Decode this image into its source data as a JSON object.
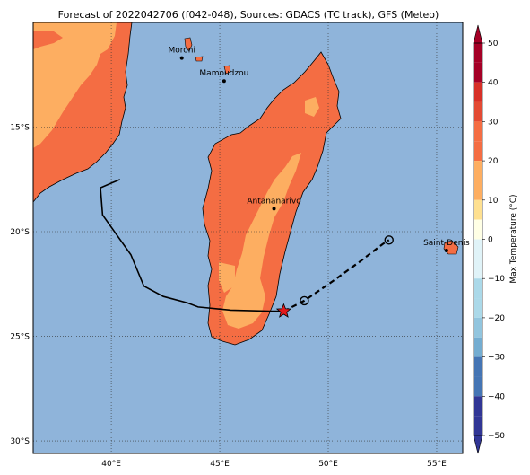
{
  "title": "Forecast of 2022042706 (f042-048), Sources: GDACS (TC track), GFS (Meteo)",
  "colors": {
    "sea": "#8fb4da",
    "land_hot": "#f46d43",
    "land_warm": "#fdae61",
    "coast": "#000000",
    "track": "#000000",
    "marker_now": "#e31a1c"
  },
  "axes": {
    "lon_range": [
      36.4,
      56.2
    ],
    "lat_range": [
      -30.6,
      -10.0
    ],
    "x_ticks": [
      {
        "value": 40,
        "label": "40°E"
      },
      {
        "value": 45,
        "label": "45°E"
      },
      {
        "value": 50,
        "label": "50°E"
      },
      {
        "value": 55,
        "label": "55°E"
      }
    ],
    "y_ticks": [
      {
        "value": -15,
        "label": "15°S"
      },
      {
        "value": -20,
        "label": "20°S"
      },
      {
        "value": -25,
        "label": "25°S"
      },
      {
        "value": -30,
        "label": "30°S"
      }
    ]
  },
  "cities": [
    {
      "name": "Moroni",
      "lon": 43.25,
      "lat": -11.7
    },
    {
      "name": "Mamoudzou",
      "lon": 45.2,
      "lat": -12.8
    },
    {
      "name": "Antananarivo",
      "lon": 47.5,
      "lat": -18.9
    },
    {
      "name": "Saint-Denis",
      "lon": 55.45,
      "lat": -20.9
    }
  ],
  "track": {
    "observed": [
      [
        40.4,
        -17.5
      ],
      [
        39.5,
        -17.9
      ],
      [
        39.6,
        -19.2
      ],
      [
        40.9,
        -21.1
      ],
      [
        41.5,
        -22.6
      ],
      [
        42.4,
        -23.1
      ],
      [
        43.5,
        -23.4
      ],
      [
        44.0,
        -23.6
      ],
      [
        45.5,
        -23.75
      ],
      [
        47.3,
        -23.8
      ],
      [
        47.8,
        -23.8
      ]
    ],
    "current": {
      "lon": 47.95,
      "lat": -23.8
    },
    "forecast": [
      [
        47.95,
        -23.8
      ],
      [
        48.9,
        -23.3
      ],
      [
        50.3,
        -22.3
      ],
      [
        51.5,
        -21.4
      ],
      [
        52.5,
        -20.6
      ],
      [
        52.8,
        -20.4
      ]
    ],
    "forecast_points": [
      [
        48.9,
        -23.3
      ],
      [
        52.8,
        -20.4
      ]
    ]
  },
  "colorbar": {
    "label": "Max Temperature (°C)",
    "ticks": [
      50,
      40,
      30,
      20,
      10,
      0,
      -10,
      -20,
      -30,
      -40,
      -50
    ],
    "bands": [
      {
        "from": 45,
        "to": 50,
        "color": "#a50026"
      },
      {
        "from": 40,
        "to": 45,
        "color": "#a50026"
      },
      {
        "from": 35,
        "to": 40,
        "color": "#d73027"
      },
      {
        "from": 30,
        "to": 35,
        "color": "#e34a33"
      },
      {
        "from": 25,
        "to": 30,
        "color": "#f46d43"
      },
      {
        "from": 20,
        "to": 25,
        "color": "#f46d43"
      },
      {
        "from": 15,
        "to": 20,
        "color": "#fdae61"
      },
      {
        "from": 10,
        "to": 15,
        "color": "#fdae61"
      },
      {
        "from": 5,
        "to": 10,
        "color": "#fee090"
      },
      {
        "from": 0,
        "to": 5,
        "color": "#ffffe5"
      },
      {
        "from": -5,
        "to": 0,
        "color": "#e0f3f8"
      },
      {
        "from": -10,
        "to": -5,
        "color": "#e0f3f8"
      },
      {
        "from": -15,
        "to": -10,
        "color": "#abd9e9"
      },
      {
        "from": -20,
        "to": -15,
        "color": "#abd9e9"
      },
      {
        "from": -25,
        "to": -20,
        "color": "#92c5de"
      },
      {
        "from": -30,
        "to": -25,
        "color": "#74add1"
      },
      {
        "from": -35,
        "to": -30,
        "color": "#4575b4"
      },
      {
        "from": -40,
        "to": -35,
        "color": "#4575b4"
      },
      {
        "from": -45,
        "to": -40,
        "color": "#313695"
      },
      {
        "from": -50,
        "to": -45,
        "color": "#313695"
      }
    ]
  }
}
